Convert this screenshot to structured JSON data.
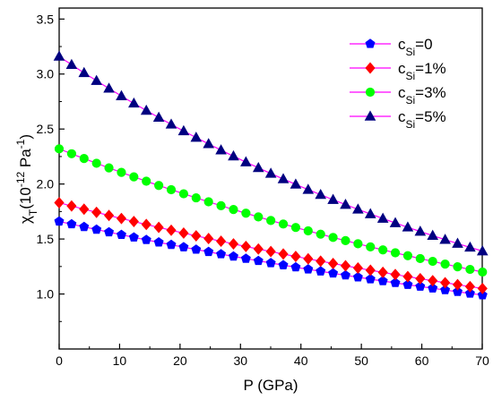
{
  "chart_data": {
    "type": "line",
    "xlabel": "P (GPa)",
    "ylabel": {
      "base": "χ",
      "sub": "T",
      "main": "(10",
      "sup1": "-12",
      "unit": " Pa",
      "sup2": "-1",
      "close": ")"
    },
    "xlim": [
      0,
      70
    ],
    "ylim": [
      0.5,
      3.6
    ],
    "x_ticks": [
      0,
      10,
      20,
      30,
      40,
      50,
      60,
      70
    ],
    "x_tick_labels": [
      "0",
      "10",
      "20",
      "30",
      "40",
      "50",
      "60",
      "70"
    ],
    "y_ticks": [
      1.0,
      1.5,
      2.0,
      2.5,
      3.0,
      3.5
    ],
    "y_tick_labels": [
      "1.0",
      "1.5",
      "2.0",
      "2.5",
      "3.0",
      "3.5"
    ],
    "grid": false,
    "legend_position": "top-right",
    "line_color": "#ff00ff",
    "series": [
      {
        "name": "c_Si=0",
        "label_main": "c",
        "label_sub": "Si",
        "label_rest": "=0",
        "marker": "pentagon",
        "color": "#0000ff",
        "x_start": 0,
        "x_step": 2.06,
        "y_start": 1.66,
        "y_end": 0.99,
        "count": 35
      },
      {
        "name": "c_Si=1%",
        "label_main": "c",
        "label_sub": "Si",
        "label_rest": "=1%",
        "marker": "diamond",
        "color": "#ff0000",
        "x_start": 0,
        "x_step": 2.06,
        "y_start": 1.83,
        "y_end": 1.05,
        "count": 35
      },
      {
        "name": "c_Si=3%",
        "label_main": "c",
        "label_sub": "Si",
        "label_rest": "=3%",
        "marker": "circle",
        "color": "#00ff00",
        "x_start": 0,
        "x_step": 2.06,
        "y_start": 2.32,
        "y_end": 1.2,
        "count": 35
      },
      {
        "name": "c_Si=5%",
        "label_main": "c",
        "label_sub": "Si",
        "label_rest": "=5%",
        "marker": "triangle",
        "color": "#000080",
        "x_start": 0,
        "x_step": 2.06,
        "y_start": 3.16,
        "y_end": 1.39,
        "count": 35
      }
    ]
  }
}
